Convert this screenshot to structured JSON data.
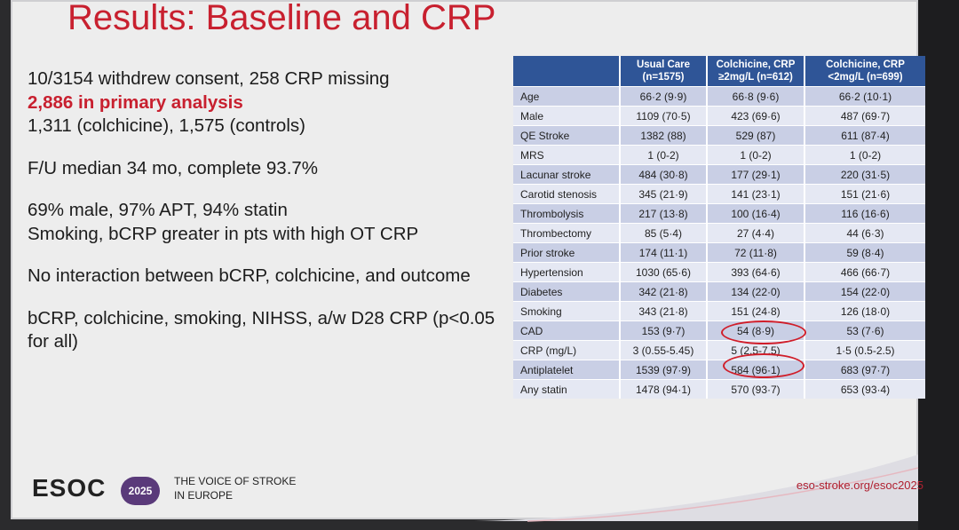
{
  "title": "Results: Baseline and CRP",
  "bullets": {
    "l1": "10/3154 withdrew consent, 258 CRP missing",
    "l2": "2,886 in primary analysis",
    "l3": "1,311 (colchicine), 1,575 (controls)",
    "l4": "F/U median 34 mo, complete 93.7%",
    "l5": "69% male, 97% APT, 94% statin",
    "l6": "Smoking, bCRP greater in pts with high OT CRP",
    "l7": "No interaction between bCRP, colchicine, and outcome",
    "l8": "bCRP, colchicine, smoking, NIHSS, a/w D28 CRP (p<0.05",
    "l9": "for all)"
  },
  "table": {
    "headers": [
      {
        "line1": "Usual Care",
        "line2": "(n=1575)"
      },
      {
        "line1": "Colchicine, CRP",
        "line2": "≥2mg/L (n=612)"
      },
      {
        "line1": "Colchicine, CRP",
        "line2": "<2mg/L (n=699)"
      }
    ],
    "rows": [
      [
        "Age",
        "66·2 (9·9)",
        "66·8 (9·6)",
        "66·2 (10·1)"
      ],
      [
        "Male",
        "1109 (70·5)",
        "423 (69·6)",
        "487 (69·7)"
      ],
      [
        "QE Stroke",
        "1382 (88)",
        "529 (87)",
        "611 (87·4)"
      ],
      [
        "MRS",
        "1 (0-2)",
        "1 (0-2)",
        "1 (0-2)"
      ],
      [
        "Lacunar stroke",
        "484 (30·8)",
        "177 (29·1)",
        "220 (31·5)"
      ],
      [
        "Carotid stenosis",
        "345 (21·9)",
        "141 (23·1)",
        "151 (21·6)"
      ],
      [
        "Thrombolysis",
        "217 (13·8)",
        "100 (16·4)",
        "116 (16·6)"
      ],
      [
        "Thrombectomy",
        "85 (5·4)",
        "27 (4·4)",
        "44 (6·3)"
      ],
      [
        "Prior stroke",
        "174 (11·1)",
        "72 (11·8)",
        "59 (8·4)"
      ],
      [
        "Hypertension",
        "1030 (65·6)",
        "393 (64·6)",
        "466 (66·7)"
      ],
      [
        "Diabetes",
        "342 (21·8)",
        "134 (22·0)",
        "154 (22·0)"
      ],
      [
        "Smoking",
        "343 (21·8)",
        "151 (24·8)",
        "126 (18·0)"
      ],
      [
        "CAD",
        "153 (9·7)",
        "54 (8·9)",
        "53 (7·6)"
      ],
      [
        "CRP (mg/L)",
        "3 (0.55-5.45)",
        "5 (2.5-7.5)",
        "1·5 (0.5-2.5)"
      ],
      [
        "Antiplatelet",
        "1539 (97·9)",
        "584 (96·1)",
        "683 (97·7)"
      ],
      [
        "Any statin",
        "1478 (94·1)",
        "570 (93·7)",
        "653 (93·4)"
      ]
    ]
  },
  "footer": {
    "logo": "ESOC",
    "year": "2025",
    "tagline1": "THE VOICE OF STROKE",
    "tagline2": "IN EUROPE",
    "url": "eso-stroke.org/esoc2025"
  },
  "colors": {
    "accent_red": "#c8202f",
    "header_blue": "#2f5597",
    "row_odd": "#c9cfe5",
    "row_even": "#e5e8f3"
  }
}
